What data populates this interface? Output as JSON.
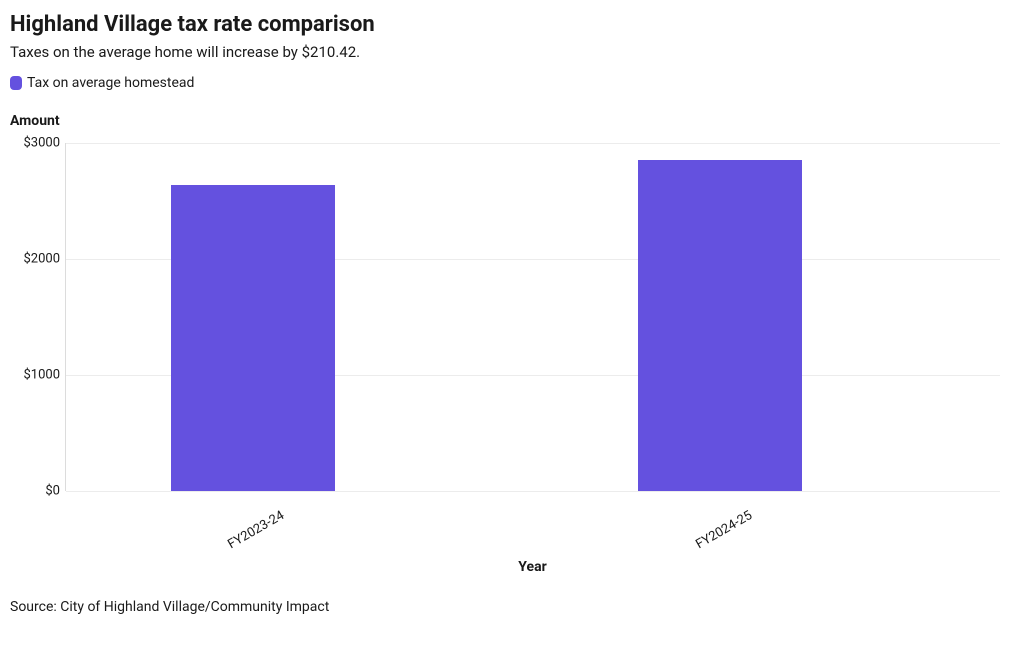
{
  "title": "Highland Village tax rate comparison",
  "subtitle": "Taxes on the average home will increase by $210.42.",
  "legend": {
    "label": "Tax on average homestead",
    "swatch_color": "#6451df"
  },
  "chart": {
    "type": "bar",
    "y_axis_title": "Amount",
    "x_axis_title": "Year",
    "ylim": [
      0,
      3000
    ],
    "y_ticks": [
      0,
      1000,
      2000,
      3000
    ],
    "y_tick_labels": [
      "$0",
      "$1000",
      "$2000",
      "$3000"
    ],
    "categories": [
      "FY2023-24",
      "FY2024-25"
    ],
    "values": [
      2640,
      2850
    ],
    "bar_color": "#6451df",
    "background_color": "#ffffff",
    "grid_color": "#ececec",
    "axis_line_color": "#dcdcdc",
    "bar_width_pct": 35,
    "title_fontsize": 22,
    "label_fontsize": 14,
    "tick_fontsize": 13
  },
  "source": "Source: City of Highland Village/Community Impact"
}
